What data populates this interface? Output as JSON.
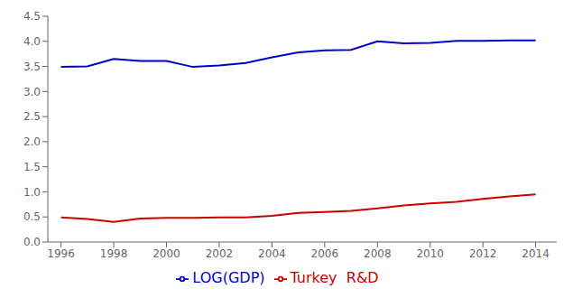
{
  "chart_data": {
    "type": "line",
    "x": [
      1996,
      1997,
      1998,
      1999,
      2000,
      2001,
      2002,
      2003,
      2004,
      2005,
      2006,
      2007,
      2008,
      2009,
      2010,
      2011,
      2012,
      2013,
      2014
    ],
    "series": [
      {
        "name": "LOG(GDP)",
        "color": "#0000cc",
        "values": [
          3.49,
          3.5,
          3.65,
          3.61,
          3.61,
          3.49,
          3.52,
          3.57,
          3.68,
          3.78,
          3.82,
          3.83,
          4.0,
          3.96,
          3.97,
          4.01,
          4.01,
          4.02,
          4.02
        ]
      },
      {
        "name": "Turkey  R&D",
        "color": "#cc0000",
        "values": [
          0.49,
          0.46,
          0.4,
          0.47,
          0.48,
          0.48,
          0.49,
          0.49,
          0.52,
          0.58,
          0.6,
          0.62,
          0.67,
          0.73,
          0.77,
          0.8,
          0.86,
          0.91,
          0.95
        ]
      }
    ],
    "xlim": [
      1995.5,
      2014.8
    ],
    "xticks": [
      1996,
      1998,
      2000,
      2002,
      2004,
      2006,
      2008,
      2010,
      2012,
      2014
    ],
    "ylim": [
      0.0,
      4.5
    ],
    "yticks": [
      {
        "value": 0.0,
        "label": "0.0"
      },
      {
        "value": 0.5,
        "label": "0.5"
      },
      {
        "value": 1.0,
        "label": "1.0"
      },
      {
        "value": 1.5,
        "label": "1.5"
      },
      {
        "value": 2.0,
        "label": "2.0"
      },
      {
        "value": 2.5,
        "label": "2.5"
      },
      {
        "value": 3.0,
        "label": "3.0"
      },
      {
        "value": 3.5,
        "label": "3.5"
      },
      {
        "value": 4.0,
        "label": "4.0"
      },
      {
        "value": 4.5,
        "label": "4.5"
      }
    ],
    "grid": false,
    "legend": "bottom"
  }
}
